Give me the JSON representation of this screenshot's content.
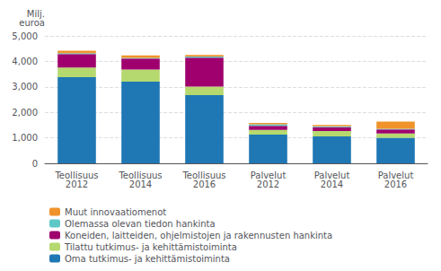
{
  "chart_data": {
    "type": "bar",
    "stacked": true,
    "ylabel": "Milj.\neuroa",
    "categories": [
      "Teollisuus\n2012",
      "Teollisuus\n2014",
      "Teollisuus\n2016",
      "Palvelut\n2012",
      "Palvelut\n2014",
      "Palvelut\n2016"
    ],
    "series": [
      {
        "name": "Oma tutkimus- ja kehittämistoiminta",
        "color": "#1f77b4",
        "values": [
          3380,
          3200,
          2680,
          1130,
          1060,
          1000
        ]
      },
      {
        "name": "Tilattu tutkimus- ja kehittämistoiminta",
        "color": "#b5d96e",
        "values": [
          380,
          480,
          330,
          180,
          210,
          170
        ]
      },
      {
        "name": "Koneiden, laitteiden, ohjelmistojen ja rakennusten hankinta",
        "color": "#a0006e",
        "values": [
          530,
          430,
          1140,
          160,
          150,
          160
        ]
      },
      {
        "name": "Olemassa olevan tiedon hankinta",
        "color": "#5ec8c8",
        "values": [
          30,
          30,
          40,
          60,
          30,
          30
        ]
      },
      {
        "name": "Muut innovaatiomenot",
        "color": "#f0932b",
        "values": [
          100,
          90,
          65,
          55,
          55,
          275
        ]
      }
    ],
    "ylim": [
      0,
      5000
    ],
    "yticks": [
      0,
      1000,
      2000,
      3000,
      4000,
      5000
    ],
    "grid": true,
    "legend": "lower left"
  }
}
